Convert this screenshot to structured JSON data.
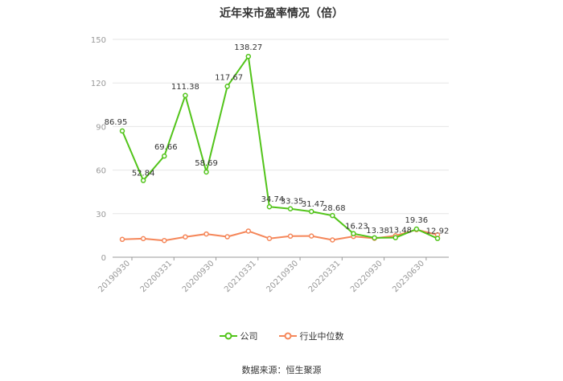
{
  "title": "近年来市盈率情况（倍）",
  "source": "数据来源：恒生聚源",
  "chart_data": {
    "type": "line",
    "x_tick_labels": [
      "20190930",
      "20200331",
      "20200930",
      "20210331",
      "20210930",
      "20220331",
      "20220930",
      "20230630"
    ],
    "ylim": [
      0,
      150
    ],
    "yticks": [
      0,
      30,
      60,
      90,
      120,
      150
    ],
    "grid": true,
    "legend_position": "bottom",
    "series": [
      {
        "name": "公司",
        "color": "#52c41a",
        "values": [
          86.95,
          52.84,
          69.66,
          111.38,
          58.69,
          117.67,
          138.27,
          34.74,
          33.35,
          31.47,
          28.68,
          16.23,
          13.38,
          13.48,
          19.36,
          12.92
        ],
        "labels": [
          "86.95",
          "52.84",
          "69.66",
          "111.38",
          "58.69",
          "117.67",
          "138.27",
          "34.74",
          "33.35",
          "31.47",
          "28.68",
          "16.23",
          "13.38",
          "13.48",
          "19.36",
          "12.92"
        ]
      },
      {
        "name": "行业中位数",
        "color": "#f5875a",
        "values": [
          12.3,
          12.8,
          11.5,
          14.0,
          16.0,
          14.1,
          18.0,
          12.9,
          14.5,
          14.6,
          11.9,
          14.3,
          13.0,
          14.8,
          19.0,
          15.4
        ]
      }
    ]
  }
}
